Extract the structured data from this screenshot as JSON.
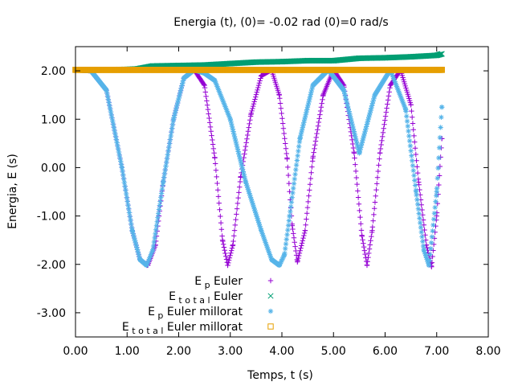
{
  "chart_data": {
    "type": "scatter",
    "title": "Energia (t),   (0)=  -0.02 rad   (0)=0 rad/s",
    "xlabel": "Temps, t (s)",
    "ylabel": "Energia, E (s)",
    "xlim": [
      0,
      8
    ],
    "ylim": [
      -3.5,
      2.5
    ],
    "xticks": [
      "0.00",
      "1.00",
      "2.00",
      "3.00",
      "4.00",
      "5.00",
      "6.00",
      "7.00",
      "8.00"
    ],
    "yticks": [
      "-3.00",
      "-2.00",
      "-1.00",
      "0.00",
      "1.00",
      "2.00"
    ],
    "grid": false,
    "legend_position": "bottom-left",
    "series": [
      {
        "name": "Ep Euler",
        "name_main": "E",
        "name_sub": "p",
        "name_rest": " Euler",
        "marker": "+",
        "color": "#9400d3",
        "x": [
          0.0,
          0.3,
          0.6,
          0.9,
          1.1,
          1.25,
          1.4,
          1.55,
          1.7,
          1.9,
          2.1,
          2.3,
          2.5,
          2.7,
          2.85,
          2.95,
          3.05,
          3.2,
          3.4,
          3.6,
          3.8,
          3.95,
          4.1,
          4.2,
          4.3,
          4.45,
          4.6,
          4.8,
          5.0,
          5.2,
          5.4,
          5.55,
          5.65,
          5.75,
          5.9,
          6.1,
          6.3,
          6.5,
          6.65,
          6.8,
          6.9,
          7.0,
          7.1
        ],
        "y": [
          2.02,
          2.0,
          1.6,
          0.0,
          -1.3,
          -1.9,
          -2.02,
          -1.6,
          -0.3,
          1.0,
          1.85,
          2.02,
          1.7,
          0.2,
          -1.5,
          -2.02,
          -1.6,
          -0.2,
          1.1,
          1.9,
          2.02,
          1.5,
          0.2,
          -1.2,
          -1.95,
          -1.3,
          0.2,
          1.5,
          2.02,
          1.7,
          0.3,
          -1.4,
          -2.02,
          -1.3,
          0.3,
          1.7,
          2.02,
          1.3,
          -0.3,
          -1.6,
          -2.05,
          -1.0,
          0.6
        ]
      },
      {
        "name": "Etotal Euler",
        "name_main": "E",
        "name_sub": "t o t a l",
        "name_rest": " Euler",
        "marker": "x",
        "color": "#009e73",
        "x": [
          0.0,
          0.5,
          1.0,
          1.2,
          1.5,
          2.0,
          2.5,
          3.0,
          3.5,
          4.0,
          4.5,
          5.0,
          5.5,
          6.0,
          6.5,
          7.0,
          7.1
        ],
        "y": [
          2.02,
          2.02,
          2.03,
          2.04,
          2.1,
          2.11,
          2.12,
          2.15,
          2.18,
          2.19,
          2.21,
          2.21,
          2.26,
          2.27,
          2.29,
          2.32,
          2.35
        ]
      },
      {
        "name": "Ep Euler millorat",
        "name_main": "E",
        "name_sub": "p",
        "name_rest": " Euler millorat",
        "marker": "*",
        "color": "#56b4e9",
        "x": [
          0.0,
          0.3,
          0.6,
          0.9,
          1.1,
          1.25,
          1.38,
          1.5,
          1.7,
          1.9,
          2.1,
          2.3,
          2.5,
          2.7,
          3.0,
          3.3,
          3.6,
          3.8,
          3.95,
          4.05,
          4.15,
          4.35,
          4.6,
          4.9,
          5.2,
          5.5,
          5.8,
          6.1,
          6.4,
          6.6,
          6.75,
          6.85,
          7.0,
          7.1
        ],
        "y": [
          2.02,
          2.0,
          1.6,
          0.0,
          -1.3,
          -1.9,
          -2.02,
          -1.7,
          -0.3,
          1.0,
          1.85,
          2.02,
          1.95,
          1.8,
          1.0,
          -0.3,
          -1.3,
          -1.9,
          -2.02,
          -1.8,
          -1.0,
          0.6,
          1.7,
          2.02,
          1.6,
          0.3,
          1.5,
          2.02,
          1.2,
          -0.5,
          -1.7,
          -2.02,
          -0.5,
          1.25
        ]
      },
      {
        "name": "Etotal Euler millorat",
        "name_main": "E",
        "name_sub": "t o t a l",
        "name_rest": " Euler millorat",
        "marker": "square",
        "color": "#e69f00",
        "x": [
          0.0,
          7.1
        ],
        "y": [
          2.02,
          2.02
        ]
      }
    ]
  }
}
